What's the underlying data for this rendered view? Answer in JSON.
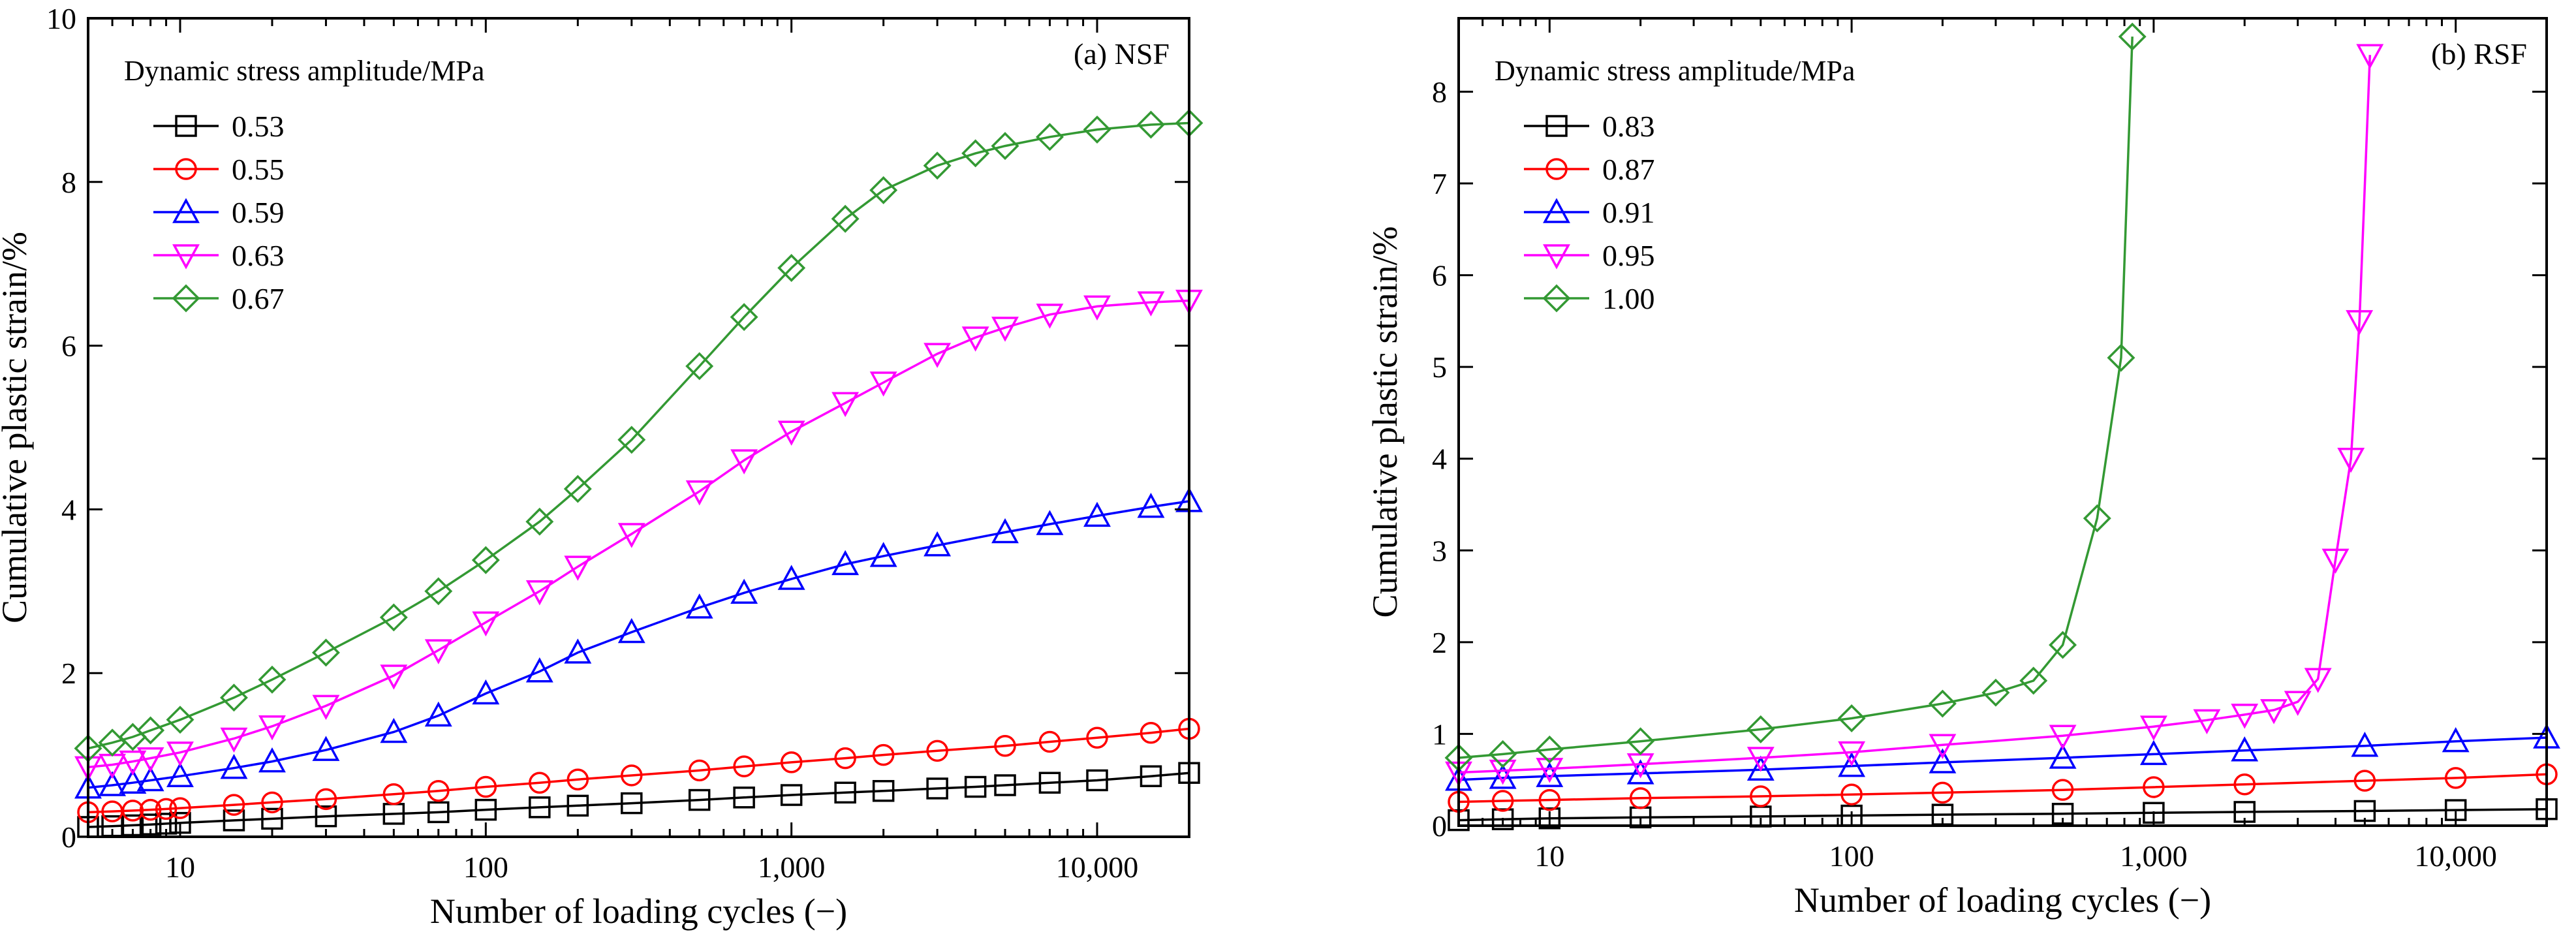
{
  "chart_data": [
    {
      "type": "line",
      "panel_label": "(a) NSF",
      "xlabel": "Number of loading cycles (−)",
      "ylabel": "Cumulative plastic strain/%",
      "xscale": "log",
      "xlim": [
        5,
        20000
      ],
      "ylim": [
        0,
        10
      ],
      "xticks": [
        10,
        100,
        1000,
        10000
      ],
      "xtick_labels": [
        "10",
        "100",
        "1,000",
        "10,000"
      ],
      "yticks": [
        0,
        2,
        4,
        6,
        8,
        10
      ],
      "ytick_labels": [
        "0",
        "2",
        "4",
        "6",
        "8",
        "10"
      ],
      "legend_title": "Dynamic stress amplitude/MPa",
      "legend_position": "top-left",
      "series": [
        {
          "name": "0.53",
          "color": "#000000",
          "marker": "square",
          "points": [
            [
              5,
              0.12
            ],
            [
              6,
              0.13
            ],
            [
              7,
              0.14
            ],
            [
              8,
              0.15
            ],
            [
              9,
              0.16
            ],
            [
              10,
              0.17
            ],
            [
              15,
              0.2
            ],
            [
              20,
              0.22
            ],
            [
              30,
              0.25
            ],
            [
              50,
              0.28
            ],
            [
              70,
              0.3
            ],
            [
              100,
              0.33
            ],
            [
              150,
              0.36
            ],
            [
              200,
              0.38
            ],
            [
              300,
              0.41
            ],
            [
              500,
              0.45
            ],
            [
              700,
              0.48
            ],
            [
              1000,
              0.51
            ],
            [
              1500,
              0.54
            ],
            [
              2000,
              0.56
            ],
            [
              3000,
              0.59
            ],
            [
              4000,
              0.61
            ],
            [
              5000,
              0.63
            ],
            [
              7000,
              0.66
            ],
            [
              10000,
              0.69
            ],
            [
              15000,
              0.74
            ],
            [
              20000,
              0.78
            ]
          ]
        },
        {
          "name": "0.55",
          "color": "#ff0000",
          "marker": "circle",
          "points": [
            [
              5,
              0.3
            ],
            [
              6,
              0.31
            ],
            [
              7,
              0.32
            ],
            [
              8,
              0.33
            ],
            [
              9,
              0.34
            ],
            [
              10,
              0.35
            ],
            [
              15,
              0.39
            ],
            [
              20,
              0.42
            ],
            [
              30,
              0.46
            ],
            [
              50,
              0.52
            ],
            [
              70,
              0.56
            ],
            [
              100,
              0.61
            ],
            [
              150,
              0.66
            ],
            [
              200,
              0.7
            ],
            [
              300,
              0.75
            ],
            [
              500,
              0.81
            ],
            [
              700,
              0.86
            ],
            [
              1000,
              0.91
            ],
            [
              1500,
              0.96
            ],
            [
              2000,
              1.0
            ],
            [
              3000,
              1.05
            ],
            [
              5000,
              1.11
            ],
            [
              7000,
              1.16
            ],
            [
              10000,
              1.21
            ],
            [
              15000,
              1.27
            ],
            [
              20000,
              1.32
            ]
          ]
        },
        {
          "name": "0.59",
          "color": "#0000ff",
          "marker": "triangle-up",
          "points": [
            [
              5,
              0.6
            ],
            [
              6,
              0.63
            ],
            [
              7,
              0.66
            ],
            [
              8,
              0.69
            ],
            [
              10,
              0.74
            ],
            [
              15,
              0.84
            ],
            [
              20,
              0.92
            ],
            [
              30,
              1.06
            ],
            [
              50,
              1.28
            ],
            [
              70,
              1.48
            ],
            [
              100,
              1.75
            ],
            [
              150,
              2.02
            ],
            [
              200,
              2.25
            ],
            [
              300,
              2.5
            ],
            [
              500,
              2.8
            ],
            [
              700,
              2.98
            ],
            [
              1000,
              3.15
            ],
            [
              1500,
              3.33
            ],
            [
              2000,
              3.43
            ],
            [
              3000,
              3.56
            ],
            [
              5000,
              3.72
            ],
            [
              7000,
              3.82
            ],
            [
              10000,
              3.92
            ],
            [
              15000,
              4.03
            ],
            [
              20000,
              4.1
            ]
          ]
        },
        {
          "name": "0.63",
          "color": "#ff00ff",
          "marker": "triangle-down",
          "points": [
            [
              5,
              0.85
            ],
            [
              6,
              0.88
            ],
            [
              7,
              0.92
            ],
            [
              8,
              0.96
            ],
            [
              10,
              1.03
            ],
            [
              15,
              1.2
            ],
            [
              20,
              1.35
            ],
            [
              30,
              1.6
            ],
            [
              50,
              1.97
            ],
            [
              70,
              2.28
            ],
            [
              100,
              2.62
            ],
            [
              150,
              3.0
            ],
            [
              200,
              3.3
            ],
            [
              300,
              3.7
            ],
            [
              500,
              4.22
            ],
            [
              700,
              4.6
            ],
            [
              1000,
              4.95
            ],
            [
              1500,
              5.3
            ],
            [
              2000,
              5.55
            ],
            [
              3000,
              5.9
            ],
            [
              4000,
              6.1
            ],
            [
              5000,
              6.22
            ],
            [
              7000,
              6.38
            ],
            [
              10000,
              6.48
            ],
            [
              15000,
              6.53
            ],
            [
              20000,
              6.55
            ]
          ]
        },
        {
          "name": "0.67",
          "color": "#339933",
          "marker": "diamond",
          "points": [
            [
              5,
              1.08
            ],
            [
              6,
              1.15
            ],
            [
              7,
              1.22
            ],
            [
              8,
              1.3
            ],
            [
              10,
              1.43
            ],
            [
              15,
              1.7
            ],
            [
              20,
              1.92
            ],
            [
              30,
              2.25
            ],
            [
              50,
              2.68
            ],
            [
              70,
              3.0
            ],
            [
              100,
              3.38
            ],
            [
              150,
              3.85
            ],
            [
              200,
              4.25
            ],
            [
              300,
              4.85
            ],
            [
              500,
              5.75
            ],
            [
              700,
              6.35
            ],
            [
              1000,
              6.95
            ],
            [
              1500,
              7.55
            ],
            [
              2000,
              7.9
            ],
            [
              3000,
              8.2
            ],
            [
              4000,
              8.35
            ],
            [
              5000,
              8.44
            ],
            [
              7000,
              8.55
            ],
            [
              10000,
              8.64
            ],
            [
              15000,
              8.7
            ],
            [
              20000,
              8.72
            ]
          ]
        }
      ]
    },
    {
      "type": "line",
      "panel_label": "(b) RSF",
      "xlabel": "Number of loading cycles (−)",
      "ylabel": "Cumulative plastic strain/%",
      "xscale": "log",
      "xlim": [
        5,
        20000
      ],
      "ylim": [
        0,
        8.8
      ],
      "xticks": [
        10,
        100,
        1000,
        10000
      ],
      "xtick_labels": [
        "10",
        "100",
        "1,000",
        "10,000"
      ],
      "yticks": [
        0,
        1,
        2,
        3,
        4,
        5,
        6,
        7,
        8
      ],
      "ytick_labels": [
        "0",
        "1",
        "2",
        "3",
        "4",
        "5",
        "6",
        "7",
        "8"
      ],
      "legend_title": "Dynamic stress amplitude/MPa",
      "legend_position": "top-left",
      "series": [
        {
          "name": "0.83",
          "color": "#000000",
          "marker": "square",
          "points": [
            [
              5,
              0.06
            ],
            [
              7,
              0.07
            ],
            [
              10,
              0.08
            ],
            [
              20,
              0.09
            ],
            [
              50,
              0.1
            ],
            [
              100,
              0.11
            ],
            [
              200,
              0.12
            ],
            [
              500,
              0.13
            ],
            [
              1000,
              0.14
            ],
            [
              2000,
              0.15
            ],
            [
              5000,
              0.16
            ],
            [
              10000,
              0.17
            ],
            [
              20000,
              0.18
            ]
          ]
        },
        {
          "name": "0.87",
          "color": "#ff0000",
          "marker": "circle",
          "points": [
            [
              5,
              0.26
            ],
            [
              7,
              0.27
            ],
            [
              10,
              0.28
            ],
            [
              20,
              0.3
            ],
            [
              50,
              0.32
            ],
            [
              100,
              0.34
            ],
            [
              200,
              0.36
            ],
            [
              500,
              0.39
            ],
            [
              1000,
              0.42
            ],
            [
              2000,
              0.45
            ],
            [
              5000,
              0.49
            ],
            [
              10000,
              0.52
            ],
            [
              20000,
              0.56
            ]
          ]
        },
        {
          "name": "0.91",
          "color": "#0000ff",
          "marker": "triangle-up",
          "points": [
            [
              5,
              0.5
            ],
            [
              7,
              0.52
            ],
            [
              10,
              0.54
            ],
            [
              20,
              0.57
            ],
            [
              50,
              0.61
            ],
            [
              100,
              0.65
            ],
            [
              200,
              0.69
            ],
            [
              500,
              0.74
            ],
            [
              1000,
              0.78
            ],
            [
              2000,
              0.82
            ],
            [
              5000,
              0.87
            ],
            [
              10000,
              0.92
            ],
            [
              20000,
              0.96
            ]
          ]
        },
        {
          "name": "0.95",
          "color": "#ff00ff",
          "marker": "triangle-down",
          "points": [
            [
              5,
              0.58
            ],
            [
              7,
              0.6
            ],
            [
              10,
              0.62
            ],
            [
              20,
              0.67
            ],
            [
              50,
              0.74
            ],
            [
              100,
              0.8
            ],
            [
              200,
              0.88
            ],
            [
              500,
              0.98
            ],
            [
              1000,
              1.08
            ],
            [
              1500,
              1.15
            ],
            [
              2000,
              1.21
            ],
            [
              2500,
              1.26
            ],
            [
              3000,
              1.35
            ],
            [
              3500,
              1.6
            ],
            [
              4000,
              2.9
            ],
            [
              4500,
              4.0
            ],
            [
              4800,
              5.5
            ],
            [
              5200,
              8.4
            ]
          ]
        },
        {
          "name": "1.00",
          "color": "#339933",
          "marker": "diamond",
          "points": [
            [
              5,
              0.74
            ],
            [
              7,
              0.78
            ],
            [
              10,
              0.83
            ],
            [
              20,
              0.92
            ],
            [
              50,
              1.05
            ],
            [
              100,
              1.17
            ],
            [
              200,
              1.33
            ],
            [
              300,
              1.45
            ],
            [
              400,
              1.58
            ],
            [
              500,
              1.97
            ],
            [
              650,
              3.35
            ],
            [
              780,
              5.1
            ],
            [
              850,
              8.6
            ]
          ]
        }
      ]
    }
  ]
}
